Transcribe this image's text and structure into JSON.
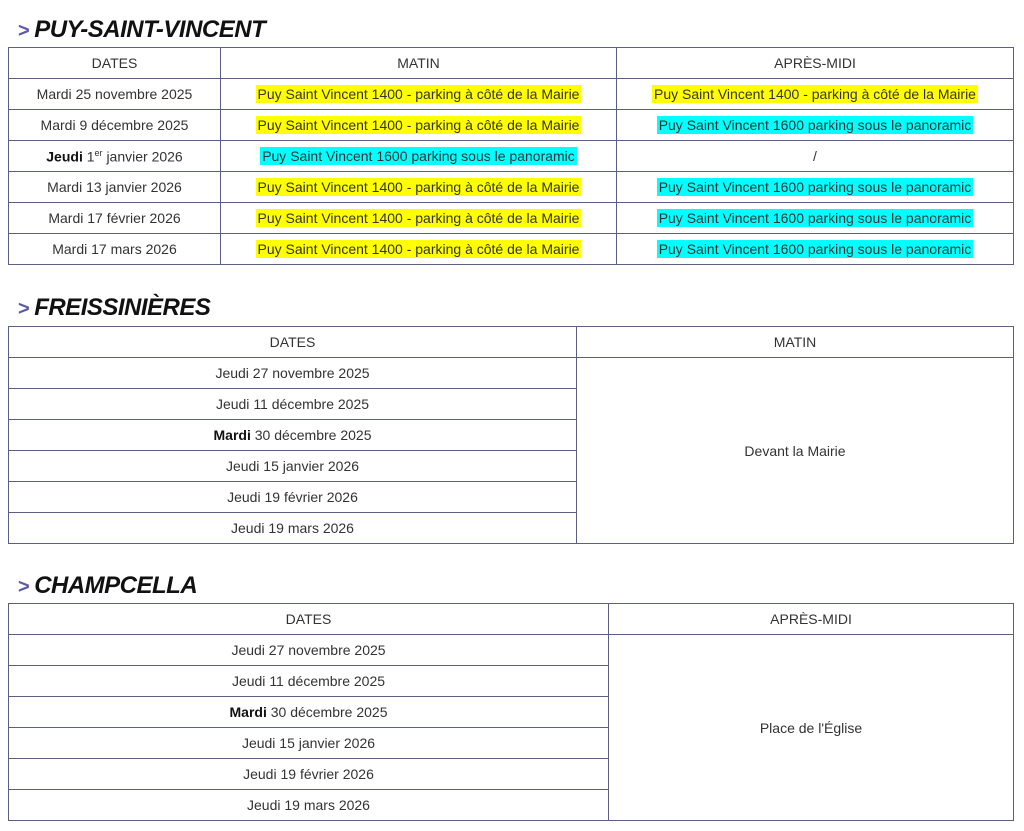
{
  "colors": {
    "yellow": "#ffff00",
    "cyan": "#00ffff",
    "arrow": "#5e59a6",
    "border": "#5b5f86"
  },
  "sections": [
    {
      "arrow": ">",
      "title": "PUY-SAINT-VINCENT",
      "headers": [
        "DATES",
        "MATIN",
        "APRÈS-MIDI"
      ],
      "rows": [
        {
          "weekday": "Mardi",
          "day": "25",
          "sup": "",
          "rest": "novembre 2025",
          "bold": false,
          "matin": "Puy Saint Vincent 1400 - parking à côté de la Mairie",
          "matin_color": "yellow",
          "apres": "Puy Saint Vincent 1400 - parking à côté de la Mairie",
          "apres_color": "yellow"
        },
        {
          "weekday": "Mardi",
          "day": "9",
          "sup": "",
          "rest": "décembre 2025",
          "bold": false,
          "matin": "Puy Saint Vincent 1400 - parking à côté de la Mairie",
          "matin_color": "yellow",
          "apres": "Puy Saint Vincent 1600 parking sous le panoramic",
          "apres_color": "cyan"
        },
        {
          "weekday": "Jeudi",
          "day": "1",
          "sup": "er",
          "rest": "janvier 2026",
          "bold": true,
          "matin": "Puy Saint Vincent 1600 parking sous le panoramic",
          "matin_color": "cyan",
          "apres": "/",
          "apres_color": ""
        },
        {
          "weekday": "Mardi",
          "day": "13",
          "sup": "",
          "rest": "janvier 2026",
          "bold": false,
          "matin": "Puy Saint Vincent 1400 - parking à côté de la Mairie",
          "matin_color": "yellow",
          "apres": "Puy Saint Vincent 1600 parking sous le panoramic",
          "apres_color": "cyan"
        },
        {
          "weekday": "Mardi",
          "day": "17",
          "sup": "",
          "rest": "février 2026",
          "bold": false,
          "matin": "Puy Saint Vincent 1400 - parking à côté de la Mairie",
          "matin_color": "yellow",
          "apres": "Puy Saint Vincent 1600 parking sous le panoramic",
          "apres_color": "cyan"
        },
        {
          "weekday": "Mardi",
          "day": "17",
          "sup": "",
          "rest": "mars 2026",
          "bold": false,
          "matin": "Puy Saint Vincent 1400 - parking à côté de la Mairie",
          "matin_color": "yellow",
          "apres": "Puy Saint Vincent 1600 parking sous le panoramic",
          "apres_color": "cyan"
        }
      ]
    },
    {
      "arrow": ">",
      "title": "FREISSINIÈRES",
      "headers": [
        "DATES",
        "MATIN"
      ],
      "place": "Devant la Mairie",
      "rows": [
        {
          "weekday": "Jeudi",
          "day": "27",
          "rest": "novembre 2025",
          "bold": false
        },
        {
          "weekday": "Jeudi",
          "day": "11",
          "rest": "décembre 2025",
          "bold": false
        },
        {
          "weekday": "Mardi",
          "day": "30",
          "rest": "décembre 2025",
          "bold": true
        },
        {
          "weekday": "Jeudi",
          "day": "15",
          "rest": "janvier 2026",
          "bold": false
        },
        {
          "weekday": "Jeudi",
          "day": "19",
          "rest": "février 2026",
          "bold": false
        },
        {
          "weekday": "Jeudi",
          "day": "19",
          "rest": "mars 2026",
          "bold": false
        }
      ]
    },
    {
      "arrow": ">",
      "title": "CHAMPCELLA",
      "headers": [
        "DATES",
        "APRÈS-MIDI"
      ],
      "place": "Place de l'Église",
      "rows": [
        {
          "weekday": "Jeudi",
          "day": "27",
          "rest": "novembre 2025",
          "bold": false
        },
        {
          "weekday": "Jeudi",
          "day": "11",
          "rest": "décembre 2025",
          "bold": false
        },
        {
          "weekday": "Mardi",
          "day": "30",
          "rest": "décembre 2025",
          "bold": true
        },
        {
          "weekday": "Jeudi",
          "day": "15",
          "rest": "janvier 2026",
          "bold": false
        },
        {
          "weekday": "Jeudi",
          "day": "19",
          "rest": "février 2026",
          "bold": false
        },
        {
          "weekday": "Jeudi",
          "day": "19",
          "rest": "mars 2026",
          "bold": false
        }
      ]
    }
  ]
}
